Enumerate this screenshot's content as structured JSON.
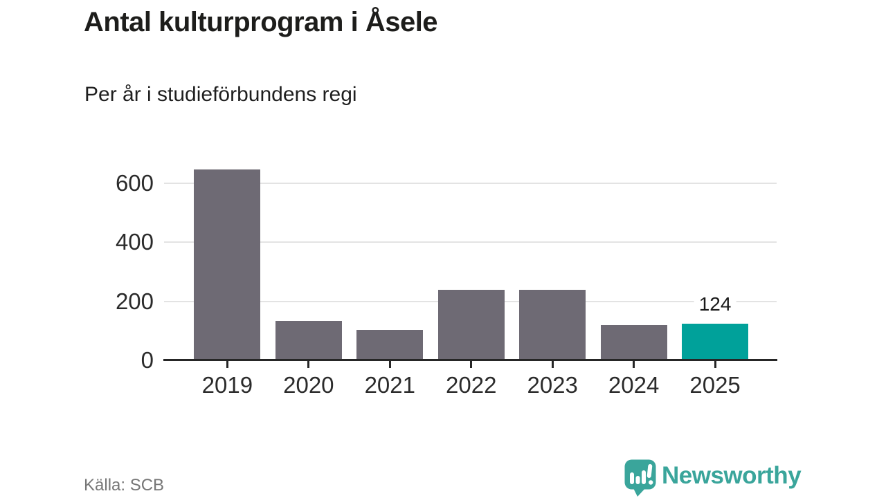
{
  "header": {
    "title": "Antal kulturprogram i Åsele",
    "subtitle": "Per år i studieförbundens regi"
  },
  "footer": {
    "source": "Källa: SCB",
    "brand": "Newsworthy"
  },
  "colors": {
    "bar": "#6e6a74",
    "highlight": "#00a19a",
    "grid": "#e3e3e3",
    "axis": "#262626",
    "text": "#2b2b2b",
    "muted": "#767676",
    "logo": "#3aa59b"
  },
  "chart_data": {
    "type": "bar",
    "title": "Antal kulturprogram i Åsele",
    "subtitle": "Per år i studieförbundens regi",
    "categories": [
      "2019",
      "2020",
      "2021",
      "2022",
      "2023",
      "2024",
      "2025"
    ],
    "values": [
      648,
      134,
      103,
      240,
      238,
      120,
      124
    ],
    "highlight_index": 6,
    "value_label": {
      "index": 6,
      "text": "124"
    },
    "ylim": [
      0,
      660
    ],
    "yticks": [
      0,
      200,
      400,
      600
    ],
    "grid": true,
    "legend": null,
    "source": "Källa: SCB"
  }
}
